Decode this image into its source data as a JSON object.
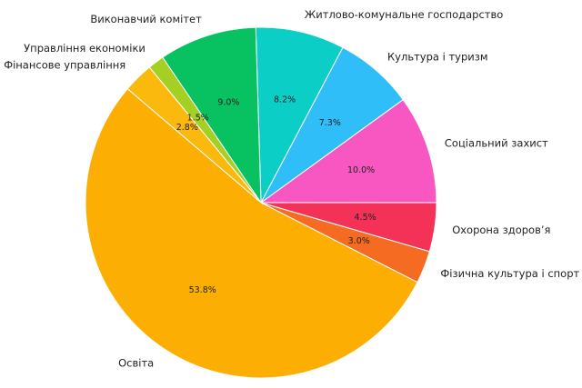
{
  "chart_data": {
    "type": "pie",
    "title": "",
    "slices": [
      {
        "label": "Соціальний захист",
        "value": 10.0,
        "pct_label": "10.0%",
        "color": "#f857c1"
      },
      {
        "label": "Культура і туризм",
        "value": 7.3,
        "pct_label": "7.3%",
        "color": "#2fbef8"
      },
      {
        "label": "Житлово-комунальне господарство",
        "value": 8.2,
        "pct_label": "8.2%",
        "color": "#0bcec7"
      },
      {
        "label": "Виконавчий комітет",
        "value": 9.0,
        "pct_label": "9.0%",
        "color": "#08c160"
      },
      {
        "label": "Управління економіки",
        "value": 1.5,
        "pct_label": "1.5%",
        "color": "#a4cf23"
      },
      {
        "label": "Фінансове управління",
        "value": 2.8,
        "pct_label": "2.8%",
        "color": "#fbb90d"
      },
      {
        "label": "Освіта",
        "value": 53.8,
        "pct_label": "53.8%",
        "color": "#fdae02"
      },
      {
        "label": "Фізична культура і спорт",
        "value": 3.0,
        "pct_label": "3.0%",
        "color": "#f56b21"
      },
      {
        "label": "Охорона здоров’я",
        "value": 4.5,
        "pct_label": "4.5%",
        "color": "#f43157"
      }
    ]
  }
}
